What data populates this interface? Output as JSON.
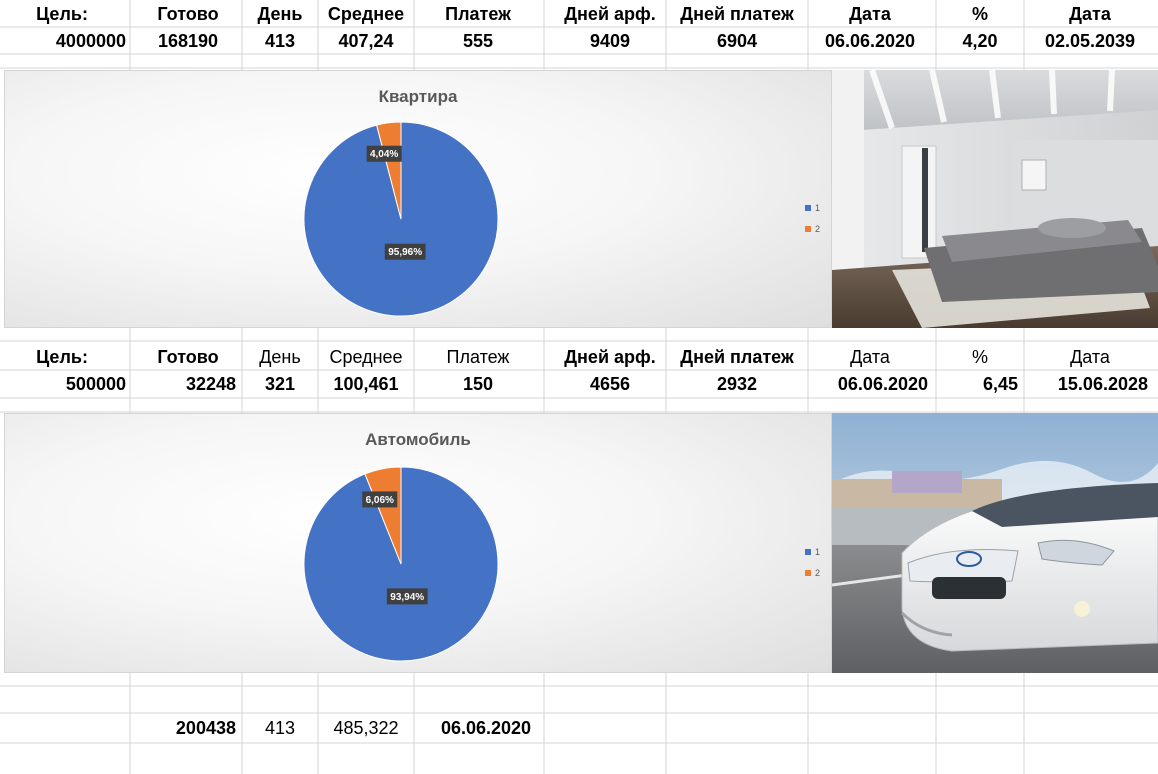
{
  "goal1": {
    "headers": [
      "Цель:",
      "Готово",
      "День",
      "Среднее",
      "Платеж",
      "Дней арф.",
      "Дней платеж",
      "Дата",
      "%",
      "Дата"
    ],
    "values": [
      "4000000",
      "168190",
      "413",
      "407,24",
      "555",
      "9409",
      "6904",
      "06.06.2020",
      "4,20",
      "02.05.2039"
    ]
  },
  "goal2": {
    "headers": [
      "Цель:",
      "Готово",
      "День",
      "Среднее",
      "Платеж",
      "Дней арф.",
      "Дней платеж",
      "Дата",
      "%",
      "Дата"
    ],
    "values": [
      "500000",
      "32248",
      "321",
      "100,461",
      "150",
      "4656",
      "2932",
      "06.06.2020",
      "6,45",
      "15.06.2028"
    ]
  },
  "summary": {
    "values": [
      "200438",
      "413",
      "485,322",
      "06.06.2020"
    ]
  },
  "colors": {
    "series1": "#4472C4",
    "series2": "#ED7D31",
    "grid": "#D4D4D4",
    "title": "#595959"
  },
  "chart_data": [
    {
      "type": "pie",
      "title": "Квартира",
      "categories": [
        "1",
        "2"
      ],
      "values": [
        95.96,
        4.04
      ],
      "labels": [
        "95,96%",
        "4,04%"
      ],
      "legend": "right",
      "photo": "bedroom-interior"
    },
    {
      "type": "pie",
      "title": "Автомобиль",
      "categories": [
        "1",
        "2"
      ],
      "values": [
        93.94,
        6.06
      ],
      "labels": [
        "93,94%",
        "6,06%"
      ],
      "legend": "right",
      "photo": "white-car"
    }
  ]
}
